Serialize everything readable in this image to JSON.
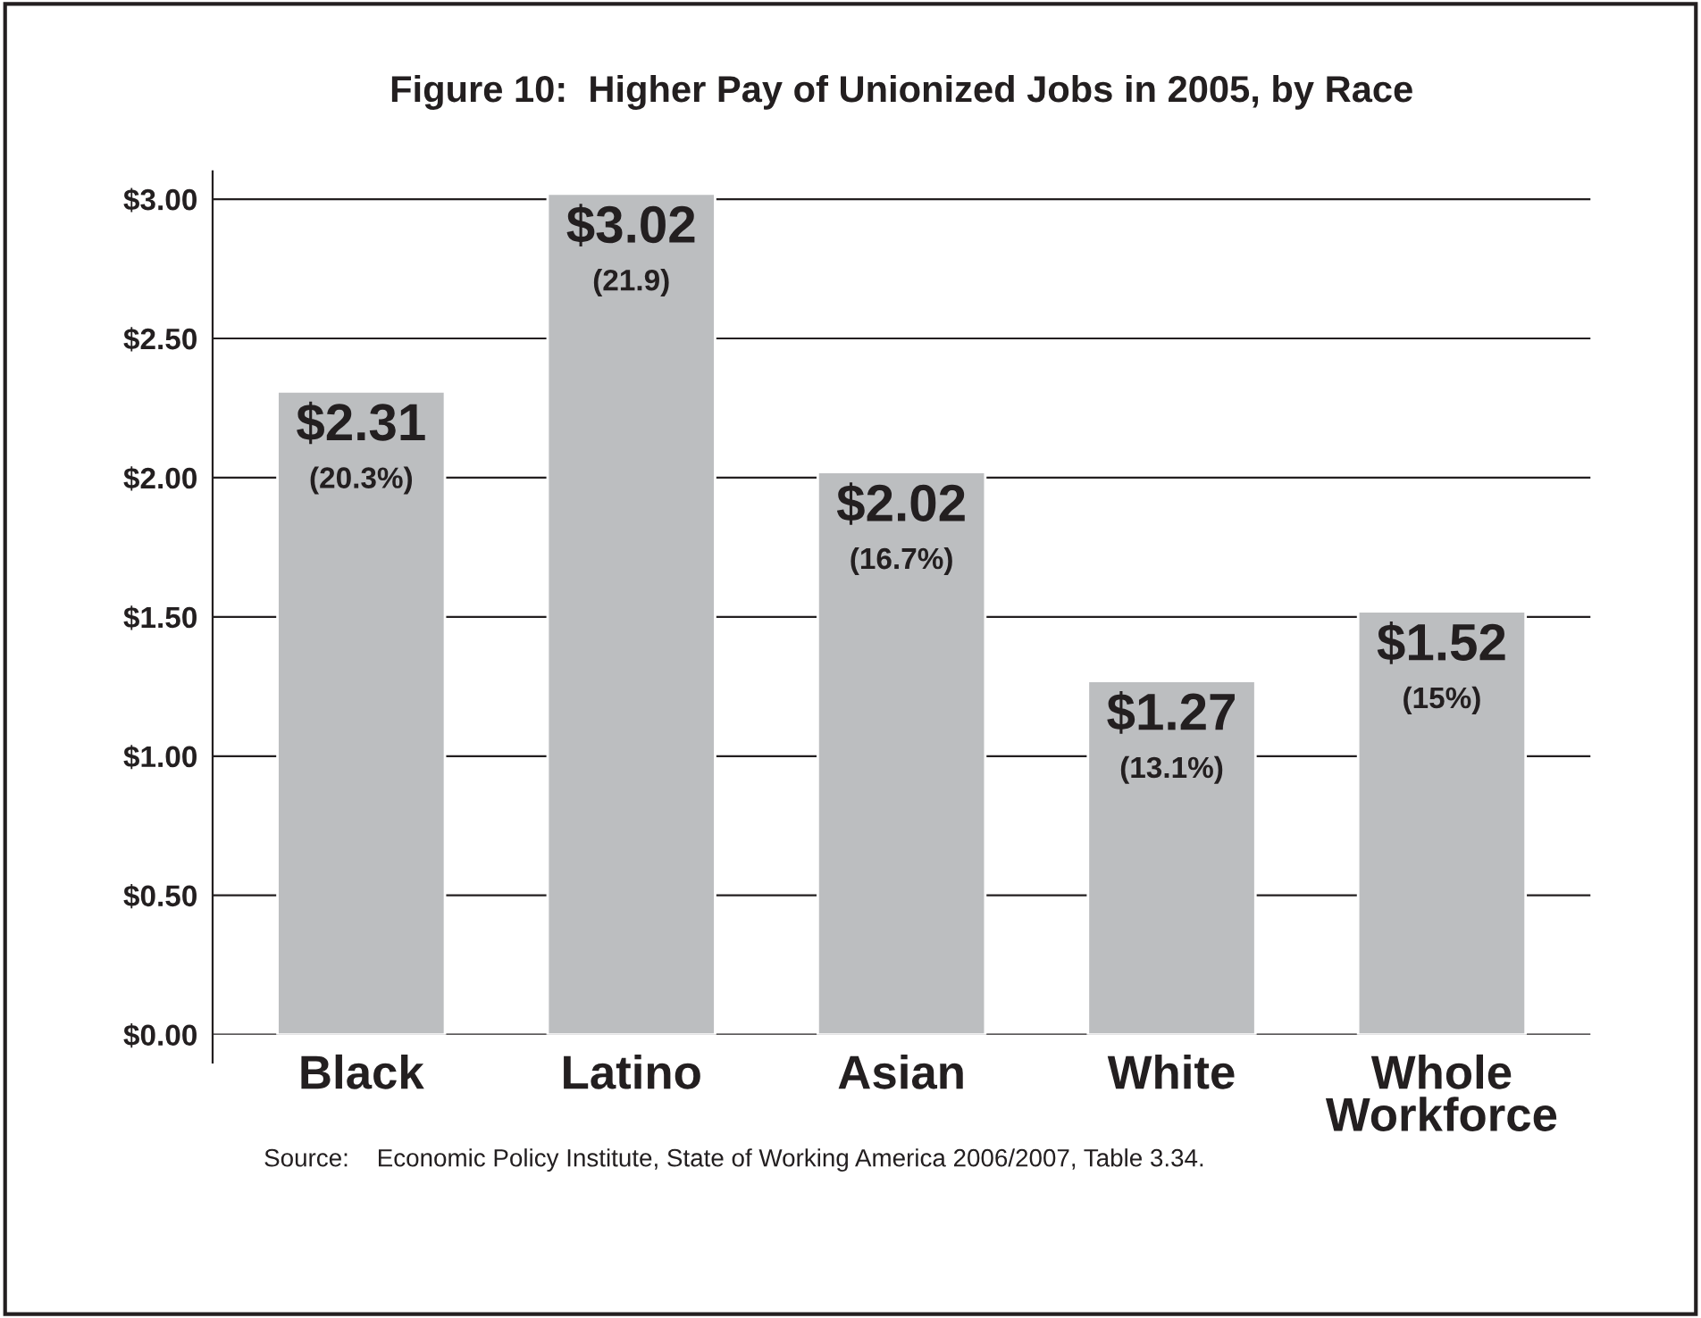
{
  "chart_data": {
    "type": "bar",
    "title": "Figure 10:  Higher Pay of Unionized Jobs in 2005, by Race",
    "categories": [
      "Black",
      "Latino",
      "Asian",
      "White",
      "Whole\nWorkforce"
    ],
    "values": [
      2.31,
      3.02,
      2.02,
      1.27,
      1.52
    ],
    "value_labels": [
      "$2.31\n(20.3%)",
      "$3.02\n(21.9)",
      "$2.02\n(16.7%)",
      "$1.27\n(13.1%)",
      "$1.52\n(15%)"
    ],
    "color": "#bcbec0",
    "ylim": [
      0,
      3.1
    ],
    "yticks": [
      {
        "value": 0,
        "label": "$0.00"
      },
      {
        "value": 0.5,
        "label": "$0.50"
      },
      {
        "value": 1,
        "label": "$1.00"
      },
      {
        "value": 1.5,
        "label": "$1.50"
      },
      {
        "value": 2,
        "label": "$2.00"
      },
      {
        "value": 2.5,
        "label": "$2.50"
      },
      {
        "value": 3,
        "label": "$3.00"
      }
    ],
    "grid": "y",
    "annotations": [
      "Source:    Economic Policy Institute, State of Working America 2006/2007, Table 3.34."
    ]
  }
}
